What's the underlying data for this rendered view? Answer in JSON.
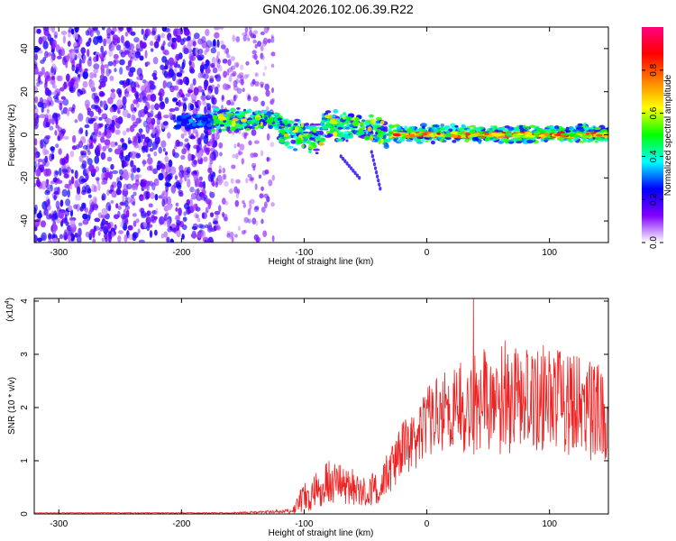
{
  "title": "GN04.2026.102.06.39.R22",
  "chart_data": [
    {
      "type": "heatmap",
      "xlabel": "Height of straight line (km)",
      "ylabel": "Frequency (Hz)",
      "xlim": [
        -320,
        148
      ],
      "ylim": [
        -50,
        50
      ],
      "xticks": [
        -300,
        -200,
        -100,
        0,
        100
      ],
      "yticks": [
        -40,
        -20,
        0,
        20,
        40
      ],
      "colorbar": {
        "label": "Normalized spectral amplitude",
        "range": [
          0.0,
          1.0
        ],
        "ticks": [
          "0.0",
          "0.2",
          "0.4",
          "0.6",
          "0.8"
        ],
        "colormap": [
          "#ffffff",
          "#8000ff",
          "#0000ff",
          "#00ffff",
          "#00ff00",
          "#ffff00",
          "#ff8000",
          "#ff0000",
          "#ff0080"
        ]
      },
      "regions": [
        {
          "name": "dense noise",
          "x_range": [
            -320,
            -170
          ],
          "f_range": [
            -50,
            50
          ]
        },
        {
          "name": "sparse noise",
          "x_range": [
            -170,
            -125
          ],
          "f_range": [
            -50,
            50
          ]
        },
        {
          "name": "signal band",
          "x_range": [
            -200,
            148
          ],
          "center_freq_hz": 0
        }
      ]
    },
    {
      "type": "line",
      "xlabel": "Height of straight line (km)",
      "ylabel": "SNR (10 * v/v)",
      "yscale_label": "(x10",
      "yscale_exponent": "4",
      "xlim": [
        -320,
        148
      ],
      "ylim": [
        0,
        4.05
      ],
      "xticks": [
        -300,
        -200,
        -100,
        0,
        100
      ],
      "yticks": [
        0,
        1,
        2,
        3,
        4
      ],
      "series_color": "#ee2222",
      "envelope": {
        "x": [
          -320,
          -160,
          -110,
          -100,
          -80,
          -60,
          -40,
          -20,
          0,
          20,
          40,
          60,
          80,
          100,
          120,
          148
        ],
        "mean": [
          0.02,
          0.02,
          0.05,
          0.3,
          0.6,
          0.5,
          0.45,
          1.2,
          1.7,
          2.0,
          2.1,
          2.2,
          2.1,
          2.2,
          2.0,
          1.9
        ],
        "spread": [
          0.005,
          0.01,
          0.04,
          0.3,
          0.4,
          0.35,
          0.3,
          0.55,
          0.7,
          0.8,
          1.0,
          1.1,
          1.0,
          1.0,
          1.0,
          0.9
        ]
      },
      "peak": {
        "x": 38,
        "y": 4.05
      }
    }
  ]
}
